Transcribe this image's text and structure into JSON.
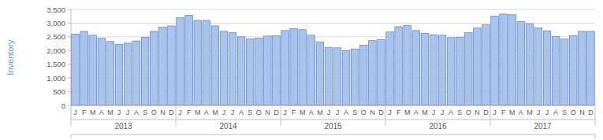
{
  "chart_data": {
    "type": "bar",
    "y_label": "Inventory",
    "categories": [
      "J",
      "F",
      "M",
      "A",
      "M",
      "J",
      "J",
      "A",
      "S",
      "O",
      "N",
      "D",
      "J",
      "F",
      "M",
      "A",
      "M",
      "J",
      "J",
      "A",
      "S",
      "O",
      "N",
      "D",
      "J",
      "F",
      "M",
      "A",
      "M",
      "J",
      "J",
      "A",
      "S",
      "O",
      "N",
      "D",
      "J",
      "F",
      "M",
      "A",
      "M",
      "J",
      "J",
      "A",
      "S",
      "O",
      "N",
      "D",
      "J",
      "F",
      "M",
      "A",
      "M",
      "J",
      "J",
      "A",
      "S",
      "O",
      "N",
      "D"
    ],
    "groups": [
      "2013",
      "2014",
      "2015",
      "2016",
      "2017"
    ],
    "values": [
      2600,
      2700,
      2560,
      2450,
      2330,
      2230,
      2270,
      2350,
      2480,
      2700,
      2850,
      2900,
      3200,
      3280,
      3100,
      3100,
      2900,
      2700,
      2650,
      2500,
      2420,
      2450,
      2530,
      2540,
      2730,
      2800,
      2760,
      2560,
      2320,
      2120,
      2100,
      2000,
      2060,
      2200,
      2360,
      2400,
      2680,
      2870,
      2920,
      2730,
      2630,
      2580,
      2560,
      2470,
      2480,
      2650,
      2820,
      2940,
      3260,
      3330,
      3310,
      3060,
      2980,
      2830,
      2720,
      2510,
      2420,
      2540,
      2700,
      2700
    ],
    "color": "#a9c4ec",
    "ylim": [
      0,
      3500
    ],
    "yticks": [
      0,
      500,
      {
        "value": 1000,
        "label": "1,000"
      },
      {
        "value": 1500,
        "label": "1,500"
      },
      {
        "value": 2000,
        "label": "2,000"
      },
      {
        "value": 2500,
        "label": "2,500"
      },
      {
        "value": 3000,
        "label": "3,000"
      },
      {
        "value": 3500,
        "label": "3,500"
      }
    ],
    "grid": true
  }
}
